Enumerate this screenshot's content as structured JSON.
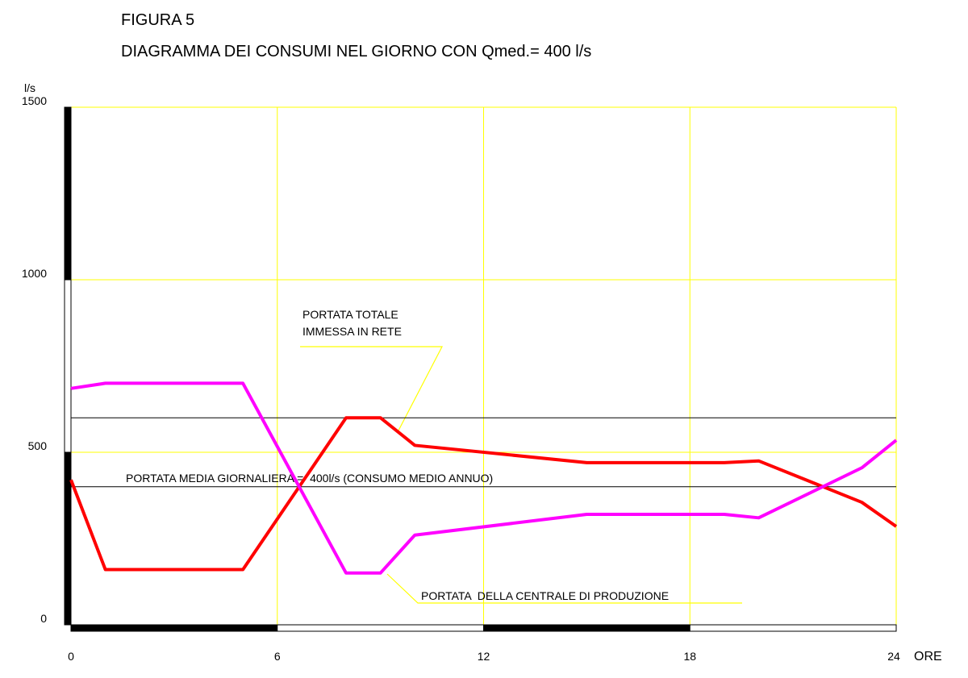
{
  "chart_data": {
    "type": "line",
    "title": "FIGURA 5",
    "subtitle": "DIAGRAMMA DEI CONSUMI NEL GIORNO CON Qmed.= 400 l/s",
    "y_label": "l/s",
    "x_label": "ORE",
    "x": [
      0,
      1,
      5,
      8,
      9,
      10,
      15,
      19,
      20,
      23,
      24
    ],
    "series": [
      {
        "color": "#ff0000",
        "values": [
          420,
          160,
          160,
          600,
          600,
          520,
          470,
          470,
          475,
          355,
          285
        ]
      },
      {
        "color": "#ff00ff",
        "values": [
          685,
          700,
          700,
          150,
          150,
          260,
          320,
          320,
          310,
          455,
          535
        ]
      }
    ],
    "hlines": [
      {
        "value": 600
      },
      {
        "value": 400,
        "label": "PORTATA MEDIA GIORNALIERA =  400l/s (CONSUMO MEDIO ANNUO)"
      }
    ],
    "annotations": [
      {
        "lines": [
          "PORTATA TOTALE",
          "IMMESSA IN RETE"
        ]
      },
      {
        "lines": [
          "PORTATA  DELLA CENTRALE DI PRODUZIONE"
        ]
      }
    ],
    "xlim": [
      0,
      24
    ],
    "ylim": [
      0,
      1500
    ],
    "xticks": [
      0,
      6,
      12,
      18,
      24
    ],
    "yticks": [
      0,
      500,
      1000,
      1500
    ],
    "grid": true,
    "grid_color": "#ffff00"
  }
}
